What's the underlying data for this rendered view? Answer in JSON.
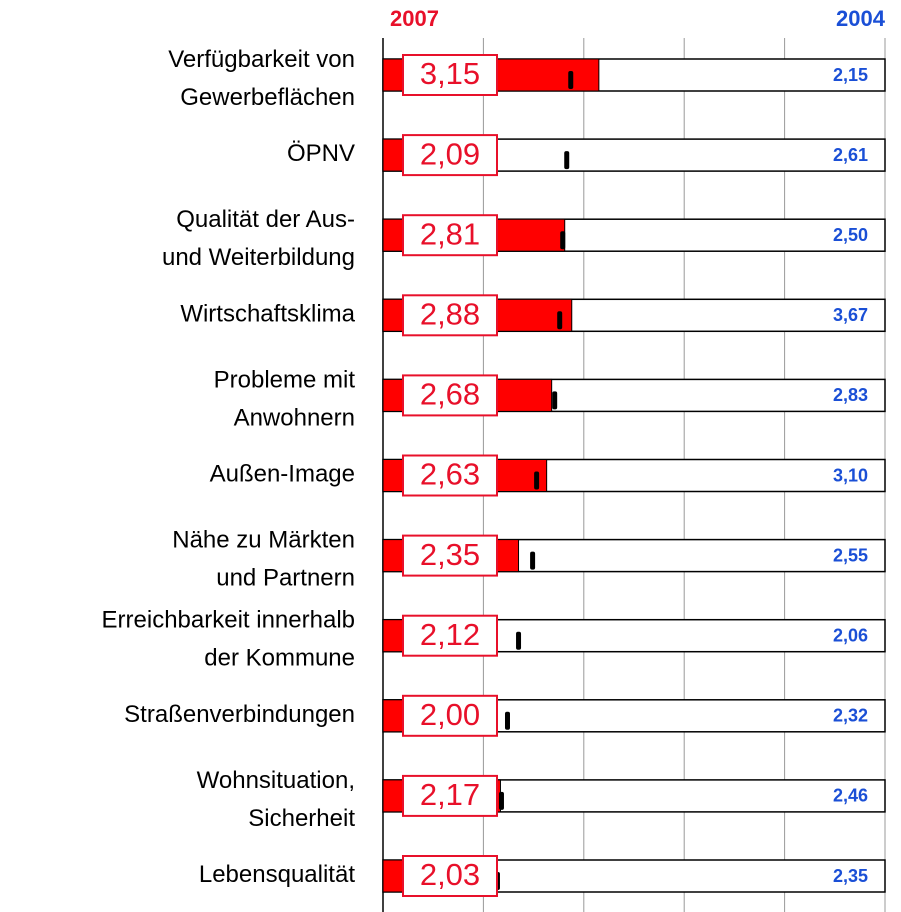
{
  "chart_data": {
    "type": "bar",
    "orientation": "horizontal",
    "categories": [
      [
        "Verfügbarkeit von",
        "Gewerbeflächen"
      ],
      [
        "ÖPNV"
      ],
      [
        "Qualität der Aus-",
        "und Weiterbildung"
      ],
      [
        "Wirtschaftsklima"
      ],
      [
        "Probleme mit",
        "Anwohnern"
      ],
      [
        "Außen-Image"
      ],
      [
        "Nähe zu Märkten",
        "und Partnern"
      ],
      [
        "Erreichbarkeit innerhalb",
        "der Kommune"
      ],
      [
        "Straßenverbindungen"
      ],
      [
        "Wohnsituation,",
        "Sicherheit"
      ],
      [
        "Lebensqualität"
      ]
    ],
    "series": [
      {
        "name": "2007",
        "color": "#ff0000",
        "label_color": "#e8102a",
        "values": [
          3.15,
          2.09,
          2.81,
          2.88,
          2.68,
          2.63,
          2.35,
          2.12,
          2.0,
          2.17,
          2.03
        ],
        "value_labels": [
          "3,15",
          "2,09",
          "2,81",
          "2,88",
          "2,68",
          "2,63",
          "2,35",
          "2,12",
          "2,00",
          "2,17",
          "2,03"
        ]
      },
      {
        "name": "2004",
        "color": "#1a4fd6",
        "values": [
          2.15,
          2.61,
          2.5,
          3.67,
          2.83,
          3.1,
          2.55,
          2.06,
          2.32,
          2.46,
          2.35
        ],
        "value_labels": [
          "2,15",
          "2,61",
          "2,50",
          "3,67",
          "2,83",
          "3,10",
          "2,55",
          "2,06",
          "2,32",
          "2,46",
          "2,35"
        ]
      },
      {
        "color": "#000000",
        "values": [
          2.87,
          2.83,
          2.79,
          2.76,
          2.71,
          2.53,
          2.49,
          2.35,
          2.24,
          2.18,
          2.14
        ]
      }
    ],
    "xlim": [
      1,
      6
    ],
    "xticks": [
      1,
      2,
      3,
      4,
      5,
      6
    ],
    "grid": true
  }
}
